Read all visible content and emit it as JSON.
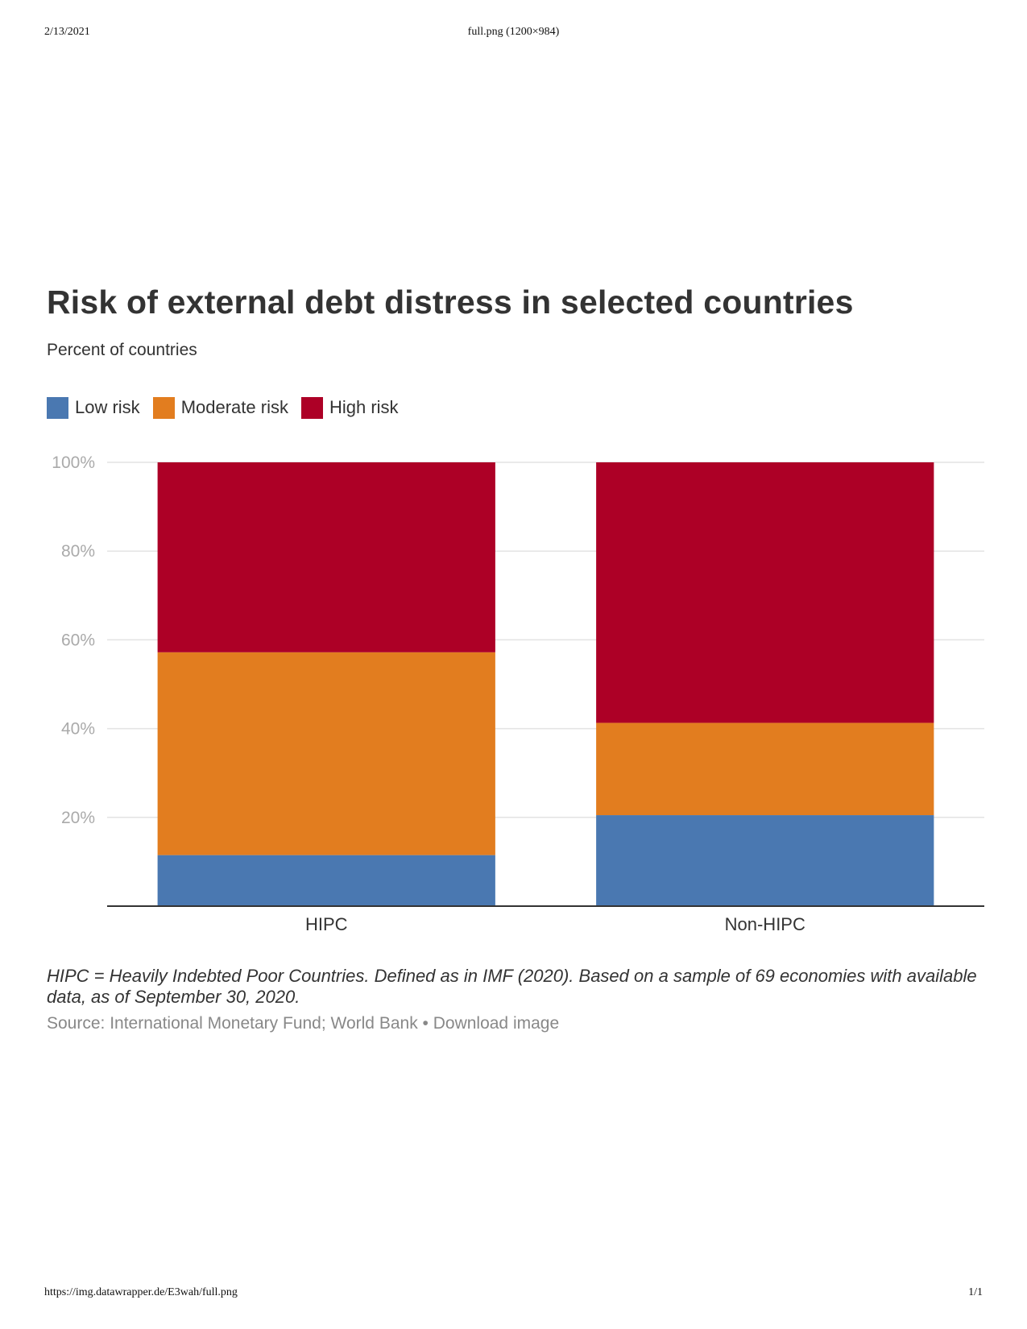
{
  "page_header": {
    "date": "2/13/2021",
    "title": "full.png (1200×984)"
  },
  "page_footer": {
    "url": "https://img.datawrapper.de/E3wah/full.png",
    "page": "1/1"
  },
  "chart_data": {
    "type": "bar",
    "stacked": true,
    "title": "Risk of external debt distress in selected countries",
    "subtitle": "Percent of countries",
    "categories": [
      "HIPC",
      "Non-HIPC"
    ],
    "series": [
      {
        "name": "Low risk",
        "color": "#4a78b1",
        "values": [
          11.5,
          20.5
        ]
      },
      {
        "name": "Moderate risk",
        "color": "#e27d1f",
        "values": [
          45.7,
          20.8
        ]
      },
      {
        "name": "High risk",
        "color": "#ad0026",
        "values": [
          42.8,
          58.7
        ]
      }
    ],
    "ylim": [
      0,
      100
    ],
    "yticks": [
      20,
      40,
      60,
      80,
      100
    ],
    "ytick_labels": [
      "20%",
      "40%",
      "60%",
      "80%",
      "100%"
    ],
    "grid": true,
    "legend_position": "top-left"
  },
  "notes": "HIPC = Heavily Indebted Poor Countries. Defined as in IMF (2020). Based on a sample of 69 economies with available data, as of September 30, 2020.",
  "source": {
    "label": "Source: International Monetary Fund; World Bank",
    "separator": " • ",
    "download": "Download image"
  }
}
